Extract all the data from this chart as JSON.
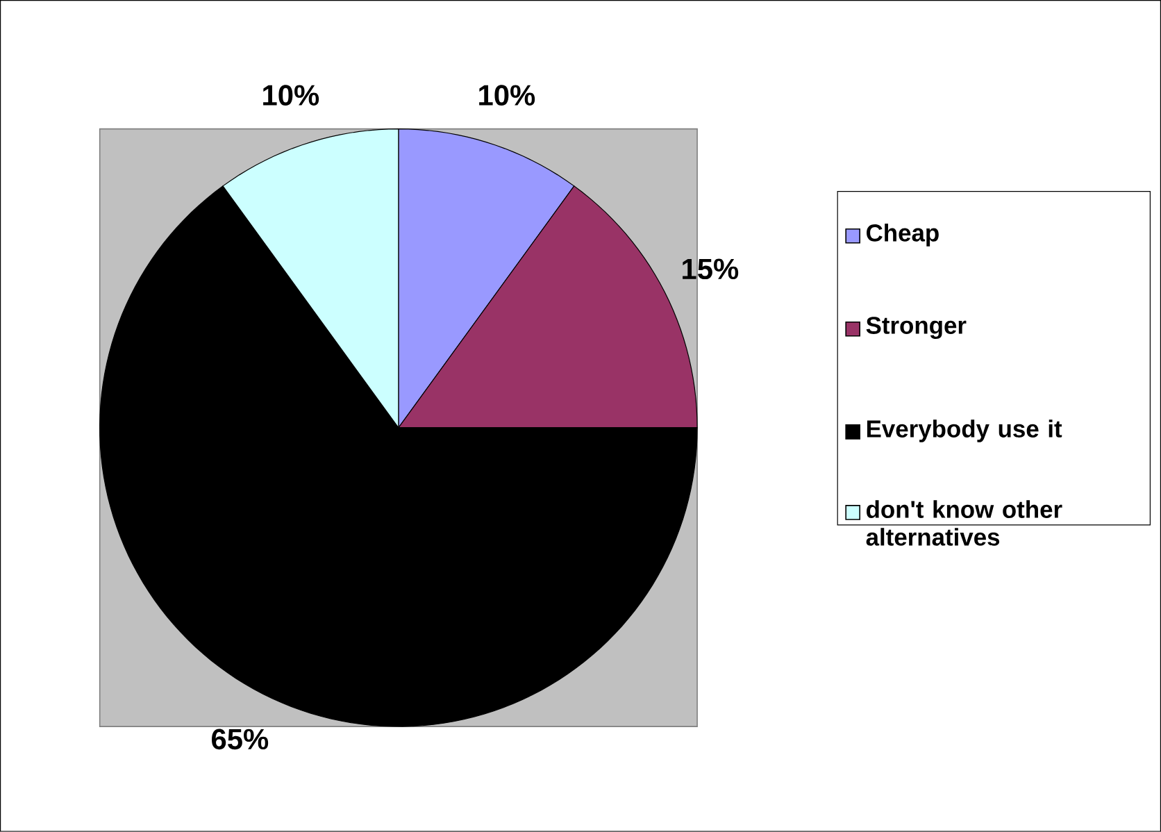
{
  "chart_data": {
    "type": "pie",
    "categories": [
      "Cheap",
      "Stronger",
      "Everybody use it",
      "don't know other alternatives"
    ],
    "values": [
      10,
      15,
      65,
      10
    ],
    "colors": [
      "#9999ff",
      "#993366",
      "#000000",
      "#ccffff"
    ],
    "value_labels": [
      "10%",
      "15%",
      "65%",
      "10%"
    ],
    "legend": "right"
  }
}
